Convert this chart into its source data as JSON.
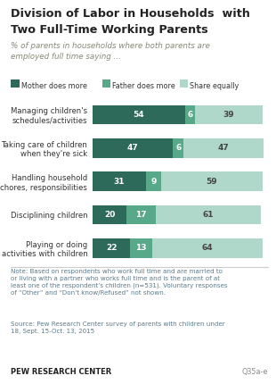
{
  "title_line1": "Division of Labor in Households  with",
  "title_line2": "Two Full-Time Working Parents",
  "subtitle": "% of parents in households where both parents are\nemployed full time saying ...",
  "categories": [
    "Managing children's\nschedules/activities",
    "Taking care of children\nwhen they're sick",
    "Handling household\nchores, responsibilities",
    "Disciplining children",
    "Playing or doing\nactivities with children"
  ],
  "mother": [
    54,
    47,
    31,
    20,
    22
  ],
  "father": [
    6,
    6,
    9,
    17,
    13
  ],
  "share": [
    39,
    47,
    59,
    61,
    64
  ],
  "colors": {
    "mother": "#2d6a5a",
    "father": "#57a98a",
    "share": "#afd8cb"
  },
  "legend_labels": [
    "Mother does more",
    "Father does more",
    "Share equally"
  ],
  "note": "Note: Based on respondents who work full time and are married to\nor living with a partner who works full time and is the parent of at\nleast one of the respondent’s children (n=531). Voluntary responses\nof “Other” and “Don’t know/Refused” not shown.",
  "source": "Source: Pew Research Center survey of parents with children under\n18, Sept. 15-Oct. 13, 2015",
  "brand": "PEW RESEARCH CENTER",
  "question": "Q35a-e",
  "title_color": "#222222",
  "subtitle_color": "#888877",
  "note_color": "#5a7a8a",
  "bg_color": "#ffffff"
}
